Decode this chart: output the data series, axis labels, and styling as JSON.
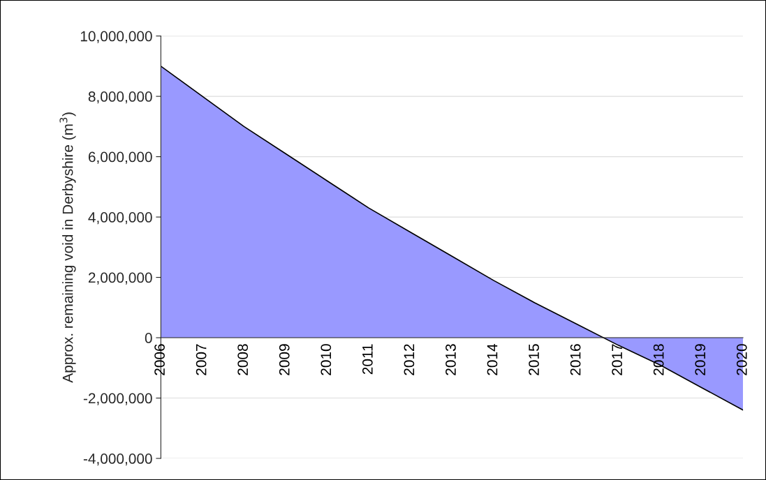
{
  "chart_data": {
    "type": "area",
    "ylabel": "Approx. remaining void in Derbyshire (m$^{3}$)",
    "categories": [
      "2006",
      "2007",
      "2008",
      "2009",
      "2010",
      "2011",
      "2012",
      "2013",
      "2014",
      "2015",
      "2016",
      "2017",
      "2018",
      "2019",
      "2020"
    ],
    "series": [
      {
        "color": "#9999ff",
        "values": [
          9000000,
          8000000,
          7000000,
          6100000,
          5200000,
          4300000,
          3500000,
          2700000,
          1900000,
          1150000,
          450000,
          -250000,
          -900000,
          -1650000,
          -2400000
        ]
      }
    ],
    "ylim": [
      -4000000,
      10000000
    ],
    "yticks": [
      {
        "value": -4000000,
        "label": "-4,000,000"
      },
      {
        "value": -2000000,
        "label": "-2,000,000"
      },
      0,
      {
        "value": 2000000,
        "label": "2,000,000"
      },
      {
        "value": 4000000,
        "label": "4,000,000"
      },
      {
        "value": 6000000,
        "label": "6,000,000"
      },
      {
        "value": 8000000,
        "label": "8,000,000"
      },
      {
        "value": 10000000,
        "label": "10,000,000"
      }
    ],
    "grid": "y",
    "legend": false
  }
}
